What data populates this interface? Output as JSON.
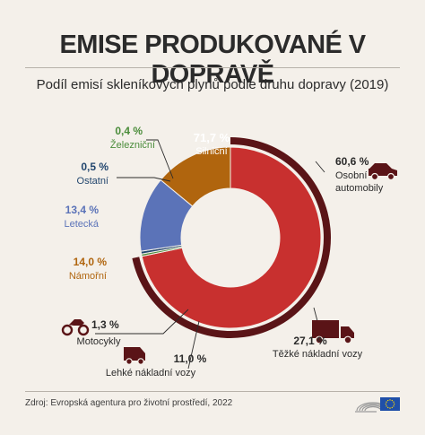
{
  "header": {
    "title": "EMISE PRODUKOVANÉ V DOPRAVĚ",
    "subtitle": "Podíl emisí skleníkových plynů podle druhu dopravy (2019)"
  },
  "footer": {
    "source": "Zdroj: Evropská agentura pro životní prostředí, 2022"
  },
  "chart_data": {
    "type": "pie",
    "style": "donut with outer ring splitting road transport into sub-categories",
    "slices": [
      {
        "label": "Silniční",
        "value_label": "71,7 %",
        "value": 71.7,
        "color": "#c8302f"
      },
      {
        "label": "Železniční",
        "value_label": "0,4 %",
        "value": 0.4,
        "color": "#4a8c3a"
      },
      {
        "label": "Ostatní",
        "value_label": "0,5 %",
        "value": 0.5,
        "color": "#22466e"
      },
      {
        "label": "Letecká",
        "value_label": "13,4 %",
        "value": 13.4,
        "color": "#5b73b8"
      },
      {
        "label": "Námořní",
        "value_label": "14,0 %",
        "value": 14.0,
        "color": "#b0650e"
      }
    ],
    "road_breakdown": [
      {
        "label": "Osobní automobily",
        "value_label": "60,6 %",
        "value": 60.6,
        "icon": "car-icon"
      },
      {
        "label": "Těžké nákladní vozy",
        "value_label": "27,1 %",
        "value": 27.1,
        "icon": "heavy-truck-icon"
      },
      {
        "label": "Lehké nákladní vozy",
        "value_label": "11,0 %",
        "value": 11.0,
        "icon": "van-icon"
      },
      {
        "label": "Motocykly",
        "value_label": "1,3 %",
        "value": 1.3,
        "icon": "motorcycle-icon"
      }
    ],
    "colors": {
      "road_ring": "#5a1417",
      "background": "#f4f0ea",
      "text": "#2b2b2b"
    }
  }
}
